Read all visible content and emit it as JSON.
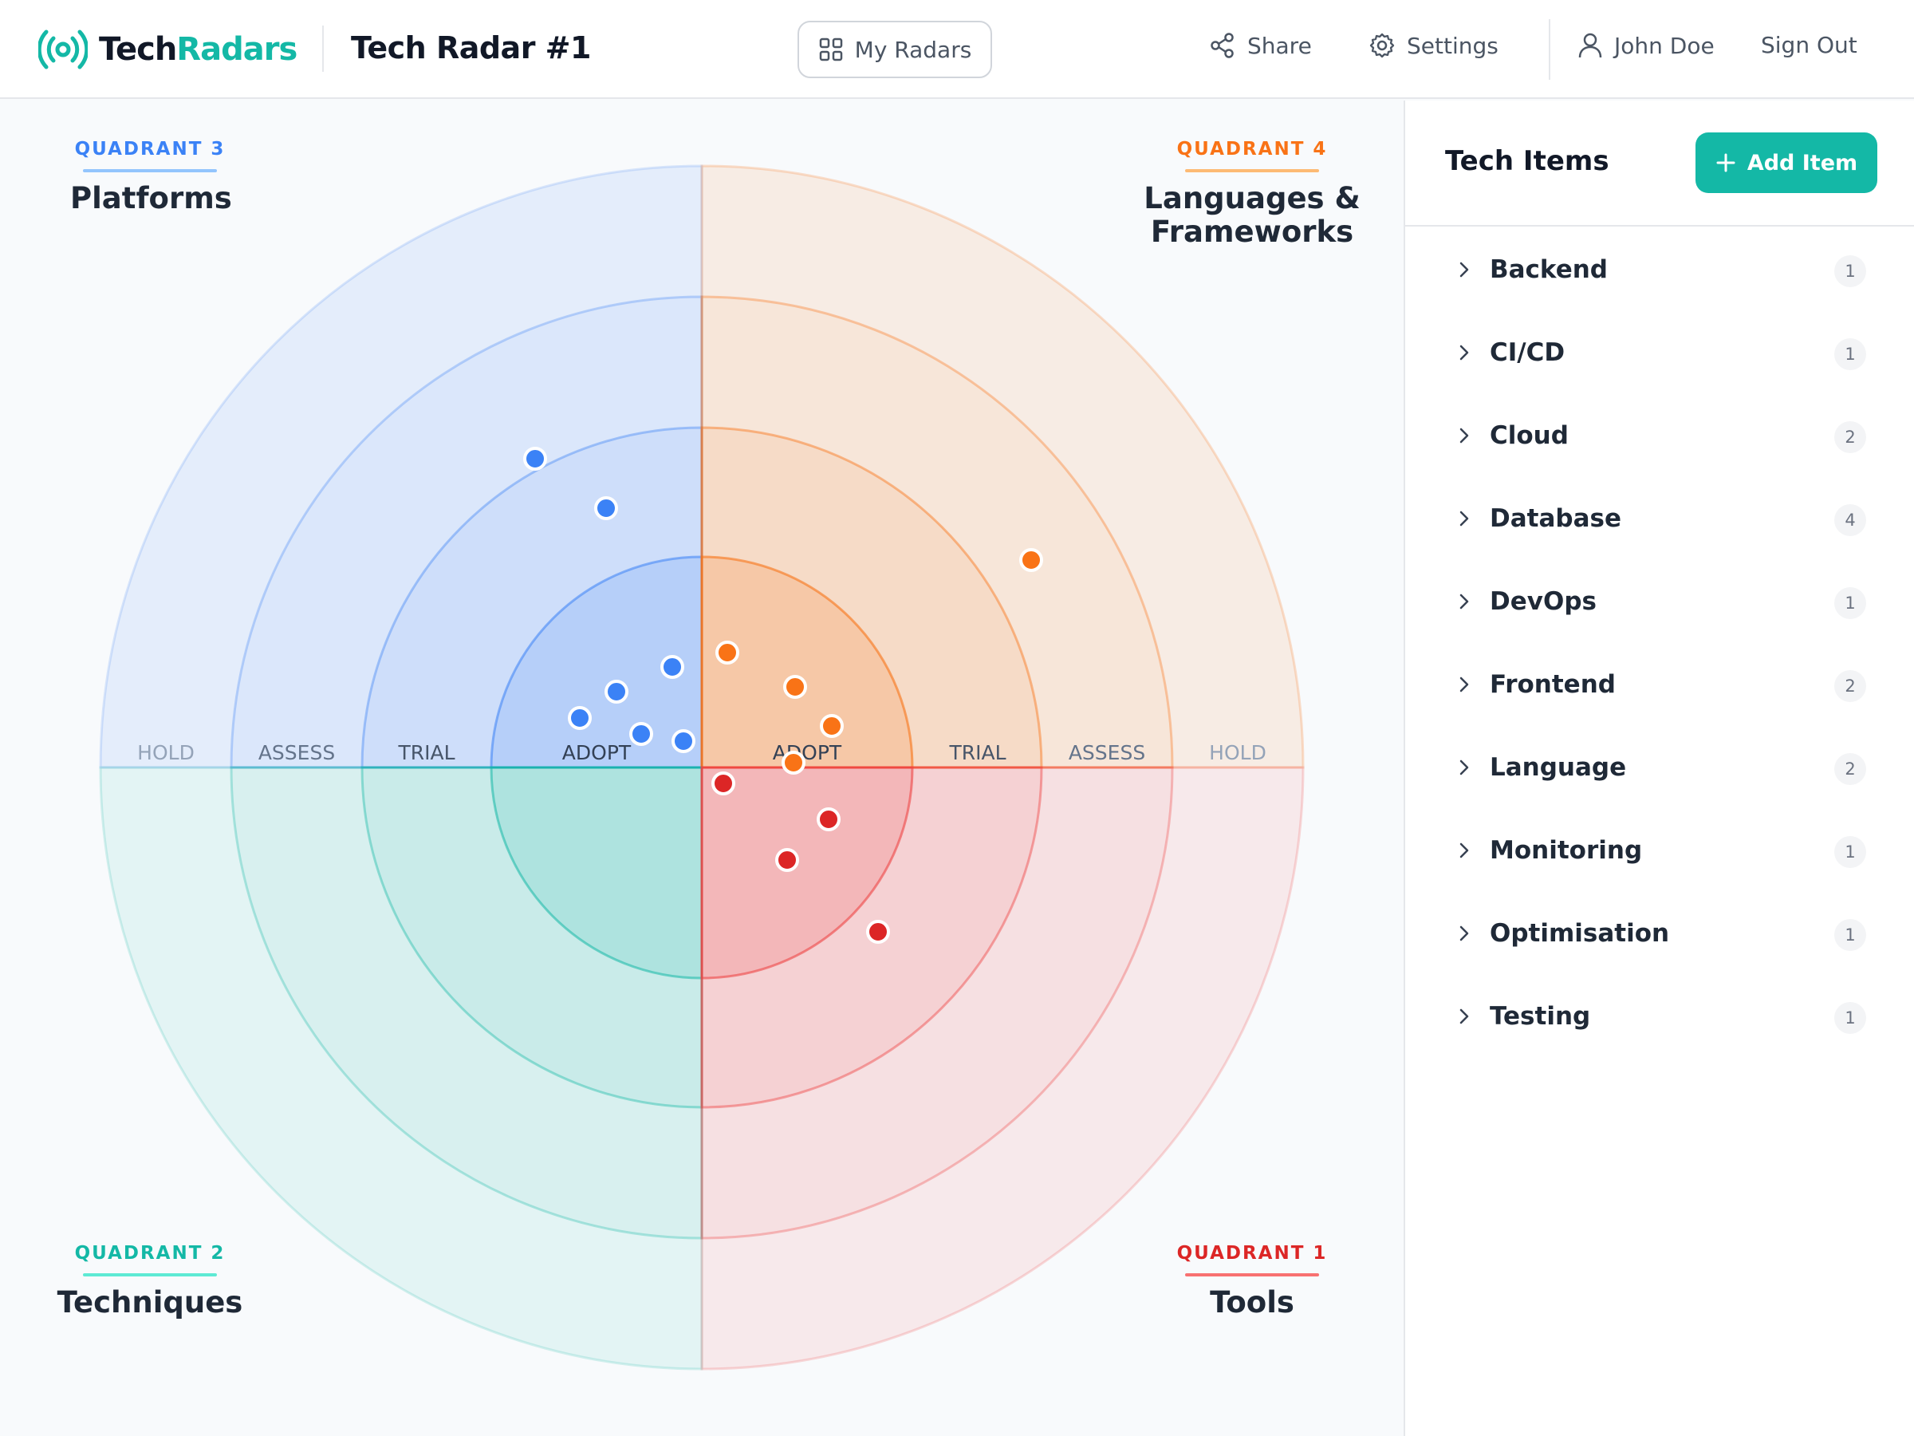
{
  "header": {
    "logo": {
      "part1": "Tech",
      "part2": "Radars",
      "icon": "broadcast-icon"
    },
    "radar_title": "Tech Radar #1",
    "my_radars_label": "My Radars",
    "share_label": "Share",
    "settings_label": "Settings",
    "user_name": "John Doe",
    "sign_out_label": "Sign Out"
  },
  "radar": {
    "rings": [
      "ADOPT",
      "TRIAL",
      "ASSESS",
      "HOLD"
    ],
    "quadrants": [
      {
        "id": 3,
        "num_label": "QUADRANT 3",
        "name": "Platforms",
        "position": "top-left",
        "color": "#3b82f6"
      },
      {
        "id": 4,
        "num_label": "QUADRANT 4",
        "name_line1": "Languages &",
        "name_line2": "Frameworks",
        "position": "top-right",
        "color": "#f97316"
      },
      {
        "id": 2,
        "num_label": "QUADRANT 2",
        "name": "Techniques",
        "position": "bottom-left",
        "color": "#14b8a6"
      },
      {
        "id": 1,
        "num_label": "QUADRANT 1",
        "name": "Tools",
        "position": "bottom-right",
        "color": "#ef4444"
      }
    ],
    "blip_colors": {
      "q3": "#3b82f6",
      "q4": "#f97316",
      "q1": "#dc2626"
    }
  },
  "sidebar": {
    "title": "Tech Items",
    "add_label": "Add Item",
    "categories": [
      {
        "label": "Backend",
        "count": "1"
      },
      {
        "label": "CI/CD",
        "count": "1"
      },
      {
        "label": "Cloud",
        "count": "2"
      },
      {
        "label": "Database",
        "count": "4"
      },
      {
        "label": "DevOps",
        "count": "1"
      },
      {
        "label": "Frontend",
        "count": "2"
      },
      {
        "label": "Language",
        "count": "2"
      },
      {
        "label": "Monitoring",
        "count": "1"
      },
      {
        "label": "Optimisation",
        "count": "1"
      },
      {
        "label": "Testing",
        "count": "1"
      }
    ]
  }
}
